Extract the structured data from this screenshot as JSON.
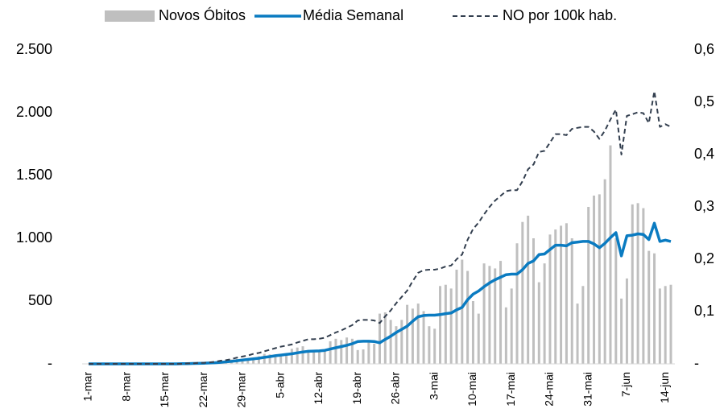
{
  "chart_data": {
    "type": "combo",
    "categories": [
      "1-mar",
      null,
      null,
      null,
      null,
      null,
      null,
      "8-mar",
      null,
      null,
      null,
      null,
      null,
      null,
      "15-mar",
      null,
      null,
      null,
      null,
      null,
      null,
      "22-mar",
      null,
      null,
      null,
      null,
      null,
      null,
      "29-mar",
      null,
      null,
      null,
      null,
      null,
      null,
      "5-abr",
      null,
      null,
      null,
      null,
      null,
      null,
      "12-abr",
      null,
      null,
      null,
      null,
      null,
      null,
      "19-abr",
      null,
      null,
      null,
      null,
      null,
      null,
      "26-abr",
      null,
      null,
      null,
      null,
      null,
      null,
      "3-mai",
      null,
      null,
      null,
      null,
      null,
      null,
      "10-mai",
      null,
      null,
      null,
      null,
      null,
      null,
      "17-mai",
      null,
      null,
      null,
      null,
      null,
      null,
      "24-mai",
      null,
      null,
      null,
      null,
      null,
      null,
      "31-mai",
      null,
      null,
      null,
      null,
      null,
      null,
      "7-jun",
      null,
      null,
      null,
      null,
      null,
      null,
      "14-jun",
      null
    ],
    "series": [
      {
        "name": "Novos Óbitos",
        "type": "bar",
        "color": "#bfbfbf",
        "values": [
          0,
          0,
          0,
          0,
          0,
          0,
          0,
          0,
          0,
          0,
          0,
          0,
          0,
          0,
          0,
          0,
          0,
          1,
          3,
          5,
          7,
          9,
          10,
          15,
          20,
          25,
          35,
          40,
          25,
          30,
          45,
          60,
          80,
          75,
          70,
          60,
          70,
          120,
          130,
          140,
          110,
          100,
          95,
          105,
          180,
          200,
          190,
          210,
          200,
          110,
          115,
          170,
          160,
          400,
          410,
          350,
          300,
          350,
          470,
          440,
          480,
          420,
          300,
          280,
          620,
          630,
          600,
          750,
          830,
          740,
          500,
          400,
          800,
          780,
          760,
          820,
          450,
          600,
          960,
          1130,
          1180,
          1000,
          650,
          800,
          1030,
          1070,
          1100,
          1120,
          1000,
          480,
          620,
          1250,
          1340,
          1350,
          1470,
          1740,
          1000,
          520,
          680,
          1270,
          1280,
          1240,
          900,
          880,
          600,
          620,
          630
        ]
      },
      {
        "name": "Média Semanal",
        "type": "line",
        "color": "#0a7bc1",
        "values": [
          0,
          0,
          0,
          0,
          0,
          0,
          0,
          0,
          0,
          0,
          0,
          0,
          0,
          0,
          0,
          0,
          0,
          1,
          2,
          3,
          4,
          5,
          7,
          9,
          12,
          16,
          20,
          25,
          30,
          35,
          40,
          45,
          52,
          58,
          65,
          70,
          75,
          80,
          88,
          95,
          100,
          102,
          103,
          108,
          118,
          128,
          138,
          148,
          160,
          178,
          180,
          180,
          178,
          168,
          195,
          220,
          250,
          275,
          300,
          340,
          375,
          385,
          388,
          388,
          392,
          400,
          405,
          430,
          450,
          510,
          555,
          580,
          615,
          645,
          670,
          690,
          710,
          715,
          715,
          750,
          800,
          820,
          870,
          875,
          910,
          945,
          945,
          940,
          965,
          970,
          975,
          975,
          955,
          925,
          960,
          1005,
          1045,
          860,
          1020,
          1025,
          1035,
          1030,
          990,
          1120,
          975,
          985,
          975
        ]
      },
      {
        "name": "NO por 100k hab.",
        "type": "line",
        "line_style": "dashed",
        "axis": "y2",
        "color": "#333f4f",
        "values": [
          0,
          0,
          0,
          0,
          0,
          0,
          0,
          0,
          0,
          0,
          0,
          0,
          0,
          0,
          0,
          0,
          0,
          0.0,
          0.001,
          0.001,
          0.002,
          0.002,
          0.003,
          0.004,
          0.006,
          0.007,
          0.009,
          0.012,
          0.014,
          0.016,
          0.019,
          0.021,
          0.024,
          0.027,
          0.03,
          0.033,
          0.035,
          0.037,
          0.041,
          0.044,
          0.047,
          0.047,
          0.048,
          0.05,
          0.055,
          0.06,
          0.064,
          0.069,
          0.074,
          0.083,
          0.084,
          0.084,
          0.083,
          0.078,
          0.091,
          0.102,
          0.116,
          0.128,
          0.14,
          0.158,
          0.174,
          0.179,
          0.18,
          0.18,
          0.182,
          0.186,
          0.188,
          0.2,
          0.209,
          0.237,
          0.258,
          0.27,
          0.286,
          0.3,
          0.312,
          0.321,
          0.33,
          0.332,
          0.332,
          0.349,
          0.372,
          0.381,
          0.405,
          0.407,
          0.423,
          0.439,
          0.439,
          0.437,
          0.449,
          0.451,
          0.453,
          0.453,
          0.444,
          0.43,
          0.446,
          0.467,
          0.486,
          0.4,
          0.474,
          0.477,
          0.481,
          0.479,
          0.46,
          0.521,
          0.453,
          0.458,
          0.453
        ]
      }
    ],
    "ylim": [
      0,
      2500
    ],
    "yticks": [
      {
        "value": 0,
        "label": "-"
      },
      500,
      {
        "value": 1000,
        "label": "1.000"
      },
      {
        "value": 1500,
        "label": "1.500"
      },
      {
        "value": 2000,
        "label": "2.000"
      },
      {
        "value": 2500,
        "label": "2.500"
      }
    ],
    "y2lim": [
      0,
      0.6
    ],
    "y2ticks": [
      {
        "value": 0,
        "label": "-"
      },
      {
        "value": 0.1,
        "label": "0,1"
      },
      {
        "value": 0.2,
        "label": "0,2"
      },
      {
        "value": 0.3,
        "label": "0,3"
      },
      {
        "value": 0.4,
        "label": "0,4"
      },
      {
        "value": 0.5,
        "label": "0,5"
      },
      {
        "value": 0.6,
        "label": "0,6"
      }
    ],
    "legend": "top",
    "grid": false
  }
}
